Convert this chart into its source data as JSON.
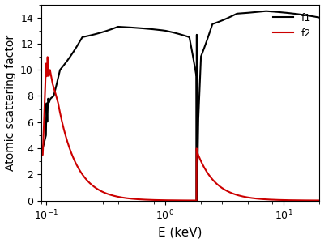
{
  "xlabel": "E (keV)",
  "ylabel": "Atomic scattering factor",
  "xlim": [
    0.09,
    20
  ],
  "ylim": [
    0,
    15
  ],
  "yticks": [
    0,
    2,
    4,
    6,
    8,
    10,
    12,
    14
  ],
  "line_color_f1": "#000000",
  "line_color_f2": "#cc0000",
  "legend_f1": "f1",
  "legend_f2": "f2",
  "figsize": [
    4.0,
    3.0
  ],
  "dpi": 100
}
